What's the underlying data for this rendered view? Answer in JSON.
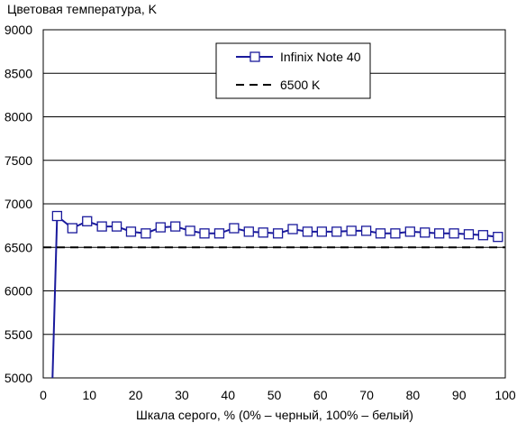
{
  "chart_data": {
    "type": "line",
    "title": "",
    "ylabel": "Цветовая температура, K",
    "xlabel": "Шкала серого, % (0% – черный, 100% – белый)",
    "xlim": [
      0,
      100
    ],
    "ylim": [
      5000,
      9000
    ],
    "x_ticks": [
      0,
      10,
      20,
      30,
      40,
      50,
      60,
      70,
      80,
      90,
      100
    ],
    "y_ticks": [
      5000,
      5500,
      6000,
      6500,
      7000,
      7500,
      8000,
      8500,
      9000
    ],
    "grid": "horizontal",
    "legend_position": "top-right",
    "series": [
      {
        "name": "Infinix Note 40",
        "color": "#1a1a9c",
        "marker": "square",
        "x": [
          2,
          3,
          6.3,
          9.5,
          12.7,
          15.9,
          19,
          22.2,
          25.4,
          28.6,
          31.8,
          34.9,
          38.1,
          41.3,
          44.5,
          47.6,
          50.8,
          54,
          57.2,
          60.3,
          63.5,
          66.7,
          69.9,
          73,
          76.2,
          79.4,
          82.6,
          85.7,
          88.9,
          92.1,
          95.2,
          98.4
        ],
        "values": [
          5000,
          6860,
          6720,
          6800,
          6740,
          6740,
          6680,
          6660,
          6730,
          6740,
          6690,
          6660,
          6660,
          6720,
          6680,
          6670,
          6660,
          6710,
          6680,
          6680,
          6680,
          6690,
          6690,
          6660,
          6660,
          6680,
          6670,
          6660,
          6660,
          6650,
          6640,
          6620
        ],
        "marker_from_index": 1
      },
      {
        "name": "6500 K",
        "color": "#000000",
        "dash": "dashed",
        "x": [
          0,
          100
        ],
        "values": [
          6500,
          6500
        ]
      }
    ]
  }
}
